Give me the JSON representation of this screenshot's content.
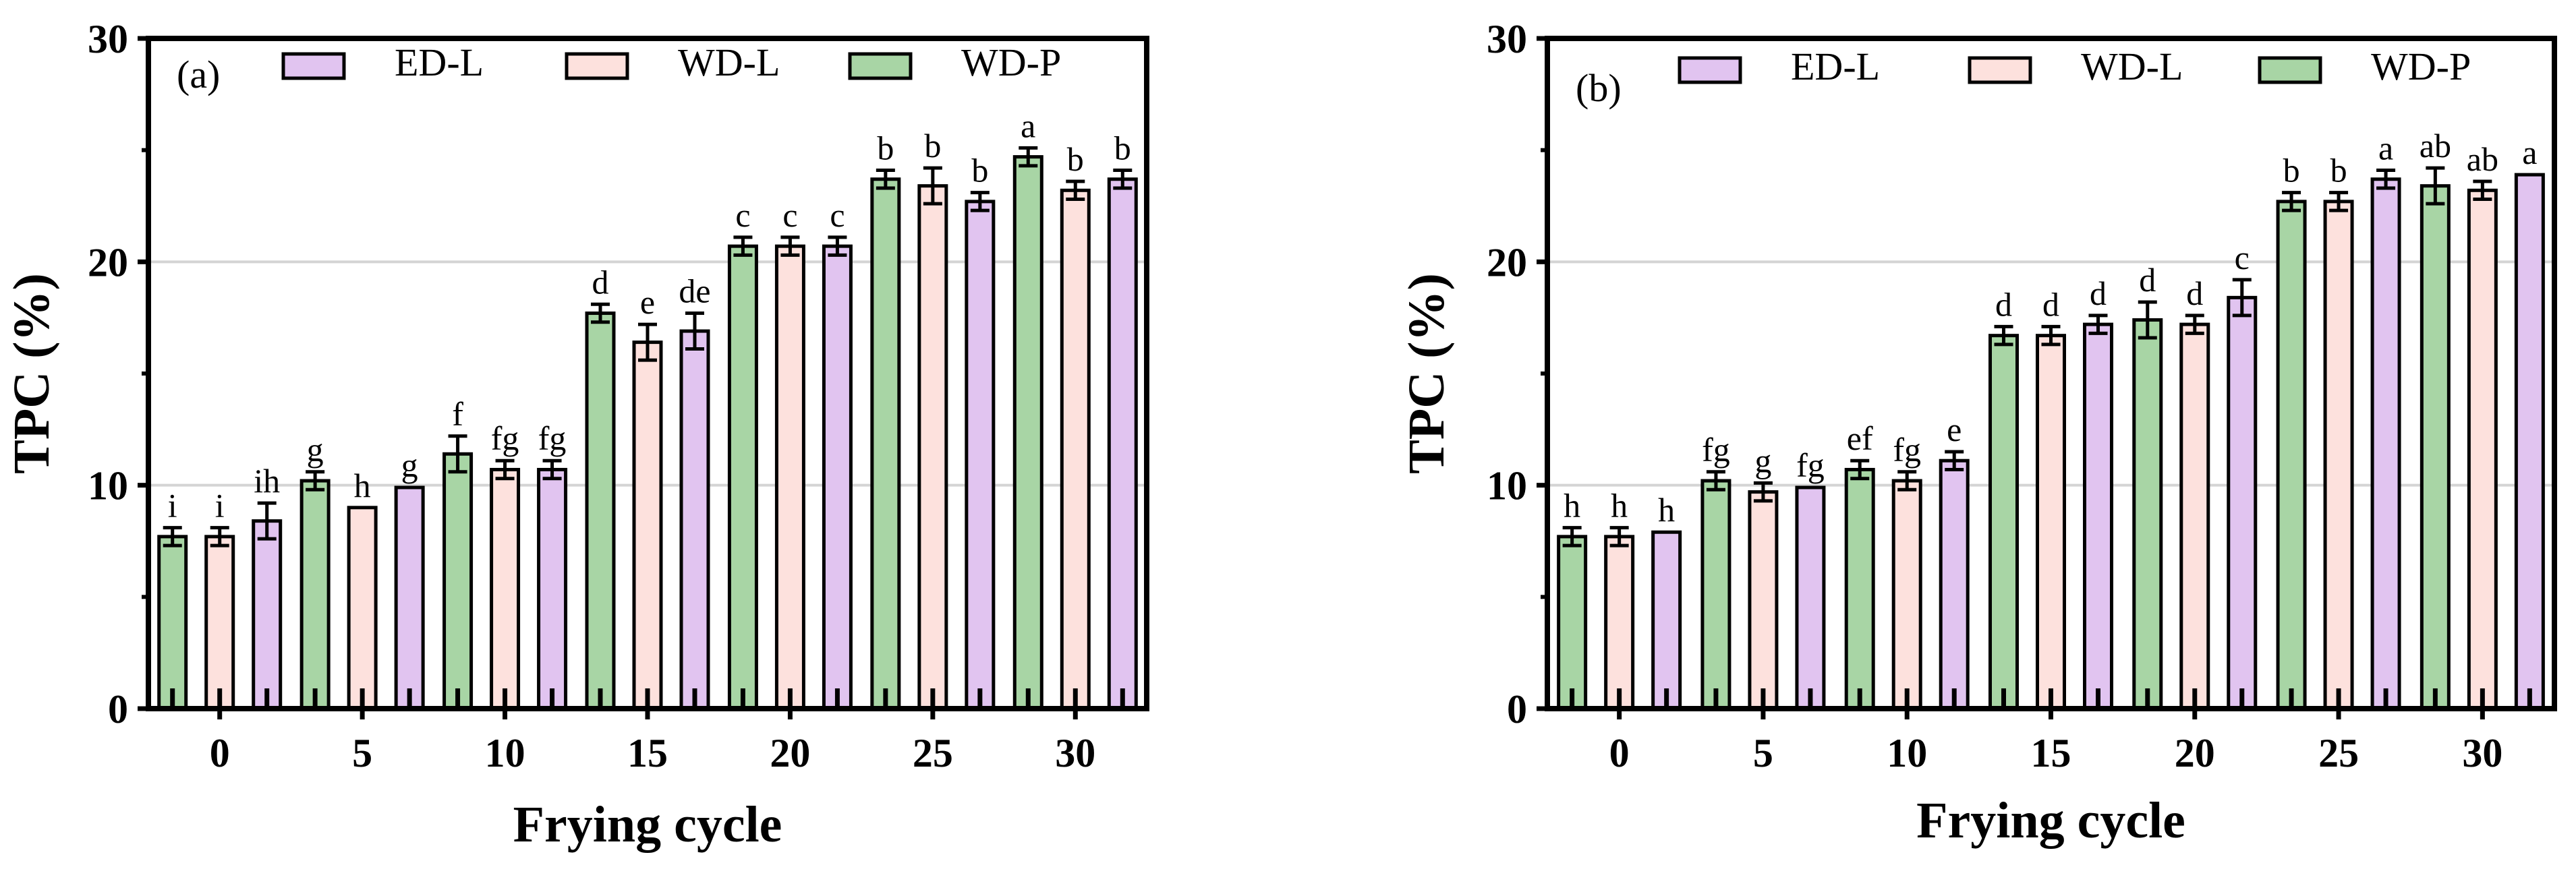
{
  "colors": {
    "WD-P": "#a8d5a5",
    "WD-L": "#fde1dd",
    "ED-L": "#e1c4f0",
    "gridline": "#d4d4d4",
    "axis": "#000000"
  },
  "chart_data": [
    {
      "type": "bar",
      "panel": "(a)",
      "xlabel": "Frying cycle",
      "ylabel": "TPC (%)",
      "ylim": [
        0,
        30
      ],
      "yticks": [
        "0",
        "10",
        "20",
        "30"
      ],
      "grid": true,
      "legend_position": "top",
      "legend": [
        "ED-L",
        "WD-L",
        "WD-P"
      ],
      "categories": [
        "0",
        "5",
        "10",
        "15",
        "20",
        "25",
        "30"
      ],
      "series": [
        {
          "name": "WD-P",
          "values": [
            7.7,
            10.2,
            11.4,
            17.7,
            20.7,
            23.7,
            24.7
          ],
          "errors": [
            0.4,
            0.4,
            0.8,
            0.4,
            0.4,
            0.4,
            0.4
          ],
          "labels": [
            "i",
            "g",
            "f",
            "d",
            "c",
            "b",
            "a"
          ]
        },
        {
          "name": "WD-L",
          "values": [
            7.7,
            9.0,
            10.7,
            16.4,
            20.7,
            23.4,
            23.2
          ],
          "errors": [
            0.4,
            0.0,
            0.4,
            0.8,
            0.4,
            0.8,
            0.4
          ],
          "labels": [
            "i",
            "h",
            "fg",
            "e",
            "c",
            "b",
            "b"
          ]
        },
        {
          "name": "ED-L",
          "values": [
            8.4,
            9.9,
            10.7,
            16.9,
            20.7,
            22.7,
            23.7
          ],
          "errors": [
            0.8,
            0.0,
            0.4,
            0.8,
            0.4,
            0.4,
            0.4
          ],
          "labels": [
            "ih",
            "g",
            "fg",
            "de",
            "c",
            "b",
            "b"
          ]
        }
      ]
    },
    {
      "type": "bar",
      "panel": "(b)",
      "xlabel": "Frying cycle",
      "ylabel": "TPC (%)",
      "ylim": [
        0,
        30
      ],
      "yticks": [
        "0",
        "10",
        "20",
        "30"
      ],
      "grid": true,
      "legend_position": "top",
      "legend": [
        "ED-L",
        "WD-L",
        "WD-P"
      ],
      "categories": [
        "0",
        "5",
        "10",
        "15",
        "20",
        "25",
        "30"
      ],
      "series": [
        {
          "name": "WD-P",
          "values": [
            7.7,
            10.2,
            10.7,
            16.7,
            17.4,
            22.7,
            23.4
          ],
          "errors": [
            0.4,
            0.4,
            0.4,
            0.4,
            0.8,
            0.4,
            0.8
          ],
          "labels": [
            "h",
            "fg",
            "ef",
            "d",
            "d",
            "b",
            "ab"
          ]
        },
        {
          "name": "WD-L",
          "values": [
            7.7,
            9.7,
            10.2,
            16.7,
            17.2,
            22.7,
            23.2
          ],
          "errors": [
            0.4,
            0.4,
            0.4,
            0.4,
            0.4,
            0.4,
            0.4
          ],
          "labels": [
            "h",
            "g",
            "fg",
            "d",
            "d",
            "b",
            "ab"
          ]
        },
        {
          "name": "ED-L",
          "values": [
            7.9,
            9.9,
            11.1,
            17.2,
            18.4,
            23.7,
            23.9
          ],
          "errors": [
            0.0,
            0.0,
            0.4,
            0.4,
            0.8,
            0.4,
            0.0
          ],
          "labels": [
            "h",
            "fg",
            "e",
            "d",
            "c",
            "a",
            "a"
          ]
        }
      ]
    }
  ]
}
